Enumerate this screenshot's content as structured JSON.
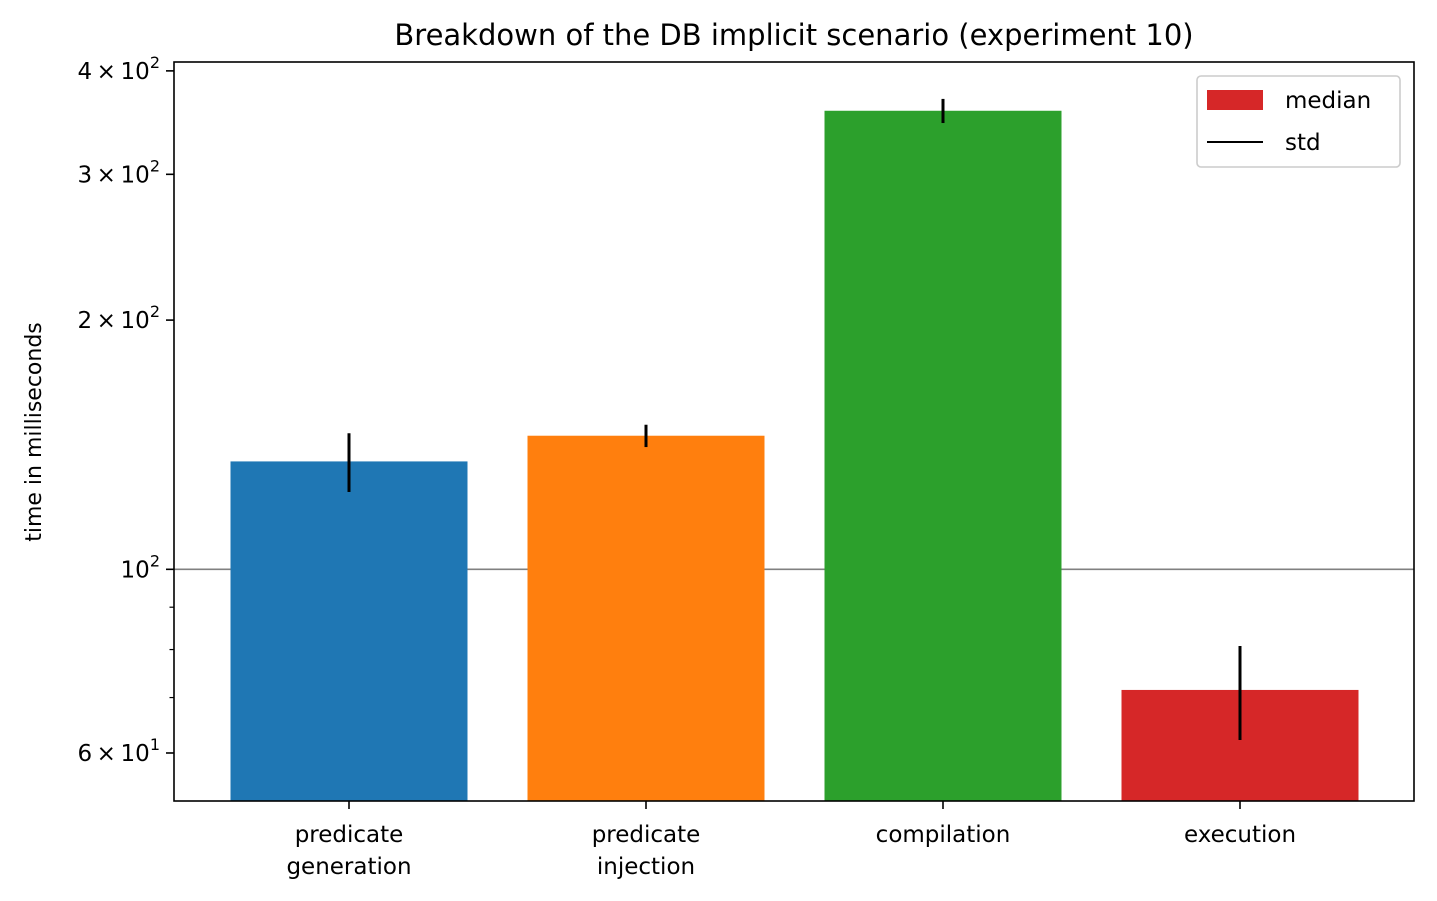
{
  "chart_data": {
    "type": "bar",
    "title": "Breakdown of the DB implicit scenario (experiment 10)",
    "ylabel": "time in milliseconds",
    "xlabel": "",
    "yscale": "log",
    "ylim": [
      52.5,
      410
    ],
    "grid": "horizontal line at 10^2",
    "legend_position": "top-right",
    "categories": [
      [
        "predicate",
        "generation"
      ],
      [
        "predicate",
        "injection"
      ],
      [
        "compilation"
      ],
      [
        "execution"
      ]
    ],
    "values": [
      135,
      145,
      358,
      71.5
    ],
    "std": [
      11,
      4.5,
      12,
      9.3
    ],
    "colors": [
      "#1f77b4",
      "#ff7f0e",
      "#2ca02c",
      "#d62728"
    ],
    "legend": [
      {
        "label": "median",
        "kind": "patch",
        "color": "#d62728"
      },
      {
        "label": "std",
        "kind": "line",
        "color": "#000000"
      }
    ],
    "major_ticks": [
      {
        "value": 60,
        "mantissa": "6",
        "exp": "1"
      },
      {
        "value": 100,
        "mantissa": "",
        "exp": "2"
      },
      {
        "value": 200,
        "mantissa": "2",
        "exp": "2"
      },
      {
        "value": 300,
        "mantissa": "3",
        "exp": "2"
      },
      {
        "value": 400,
        "mantissa": "4",
        "exp": "2"
      }
    ],
    "minor_ticks": [
      70,
      80,
      90
    ]
  }
}
